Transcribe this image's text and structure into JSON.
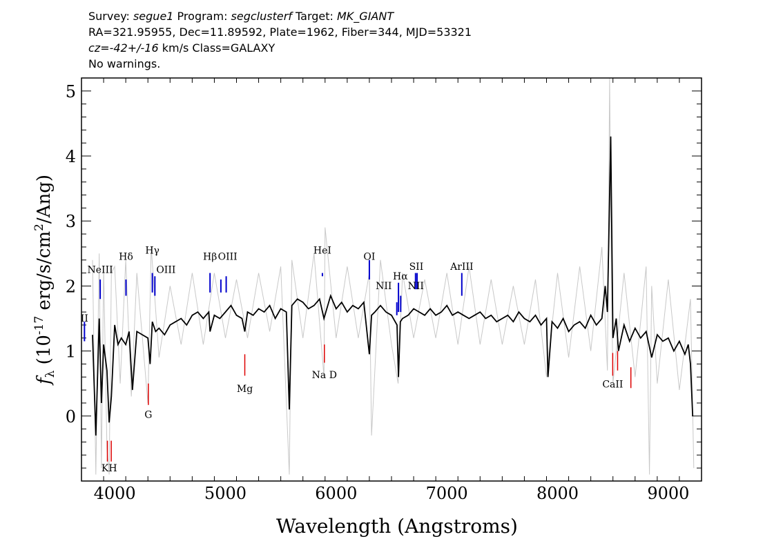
{
  "header": {
    "survey_label": "Survey: ",
    "survey": "segue1",
    "program_label": " Program: ",
    "program": "segclusterf",
    "target_label": " Target: ",
    "target": "MK_GIANT",
    "line2": "RA=321.95955, Dec=11.89592, Plate=1962, Fiber=344, MJD=53321",
    "cz": "cz=-42+/-16",
    "cz_units": " km/s Class=GALAXY",
    "warnings": "No warnings."
  },
  "chart_data": {
    "type": "line",
    "xlabel": "Wavelength (Angstroms)",
    "ylabel": "f_λ (10^-17 erg/s/cm^2/Ang)",
    "xlim": [
      3700,
      9300
    ],
    "ylim": [
      -1.0,
      5.2
    ],
    "xticks": [
      4000,
      5000,
      6000,
      7000,
      8000,
      9000
    ],
    "yticks": [
      0,
      1,
      2,
      3,
      4,
      5
    ],
    "colors": {
      "flux": "#000000",
      "error": "#c8c8c8",
      "emission": "#0000cc",
      "absorption": "#dd0000"
    },
    "series": [
      {
        "role": "flux",
        "x": [
          3800,
          3830,
          3860,
          3880,
          3900,
          3930,
          3950,
          3970,
          4000,
          4030,
          4060,
          4100,
          4130,
          4160,
          4200,
          4250,
          4300,
          4320,
          4340,
          4370,
          4400,
          4450,
          4500,
          4550,
          4600,
          4650,
          4700,
          4750,
          4800,
          4850,
          4861,
          4900,
          4950,
          5000,
          5050,
          5100,
          5150,
          5175,
          5200,
          5250,
          5300,
          5350,
          5400,
          5450,
          5500,
          5550,
          5577,
          5600,
          5650,
          5700,
          5750,
          5800,
          5850,
          5890,
          5950,
          6000,
          6050,
          6100,
          6150,
          6200,
          6250,
          6300,
          6320,
          6350,
          6400,
          6450,
          6500,
          6550,
          6563,
          6580,
          6600,
          6650,
          6700,
          6750,
          6800,
          6850,
          6900,
          6950,
          7000,
          7050,
          7100,
          7150,
          7200,
          7250,
          7300,
          7350,
          7400,
          7450,
          7500,
          7550,
          7600,
          7650,
          7700,
          7750,
          7800,
          7850,
          7900,
          7913,
          7950,
          8000,
          8050,
          8100,
          8150,
          8200,
          8250,
          8300,
          8350,
          8400,
          8430,
          8450,
          8480,
          8500,
          8530,
          8550,
          8600,
          8650,
          8700,
          8750,
          8800,
          8850,
          8900,
          8950,
          9000,
          9050,
          9100,
          9150,
          9180,
          9200,
          9220
        ],
        "y": [
          1.25,
          -0.3,
          1.5,
          0.2,
          1.1,
          0.7,
          -0.1,
          0.3,
          1.4,
          1.1,
          1.2,
          1.1,
          1.3,
          0.4,
          1.3,
          1.25,
          1.2,
          0.8,
          1.45,
          1.3,
          1.35,
          1.25,
          1.4,
          1.45,
          1.5,
          1.4,
          1.55,
          1.6,
          1.5,
          1.6,
          1.3,
          1.55,
          1.5,
          1.6,
          1.7,
          1.55,
          1.5,
          1.3,
          1.6,
          1.55,
          1.65,
          1.6,
          1.7,
          1.5,
          1.65,
          1.6,
          0.1,
          1.7,
          1.8,
          1.75,
          1.65,
          1.7,
          1.8,
          1.5,
          1.85,
          1.65,
          1.75,
          1.6,
          1.7,
          1.65,
          1.75,
          0.95,
          1.55,
          1.6,
          1.7,
          1.6,
          1.55,
          1.4,
          0.6,
          1.45,
          1.5,
          1.55,
          1.65,
          1.6,
          1.55,
          1.65,
          1.55,
          1.6,
          1.7,
          1.55,
          1.6,
          1.55,
          1.5,
          1.55,
          1.6,
          1.5,
          1.55,
          1.45,
          1.5,
          1.55,
          1.45,
          1.6,
          1.5,
          1.45,
          1.55,
          1.4,
          1.5,
          0.6,
          1.45,
          1.35,
          1.5,
          1.3,
          1.4,
          1.45,
          1.35,
          1.55,
          1.4,
          1.5,
          2.0,
          1.6,
          4.3,
          1.2,
          1.5,
          1.0,
          1.4,
          1.15,
          1.35,
          1.2,
          1.3,
          0.9,
          1.25,
          1.15,
          1.2,
          1.0,
          1.15,
          0.95,
          1.1,
          0.8,
          0.0
        ]
      },
      {
        "role": "error",
        "x": [
          3800,
          3830,
          3860,
          3880,
          3900,
          3930,
          3950,
          3970,
          4000,
          4050,
          4100,
          4150,
          4200,
          4300,
          4330,
          4400,
          4500,
          4600,
          4700,
          4800,
          4900,
          5000,
          5100,
          5200,
          5300,
          5400,
          5500,
          5577,
          5600,
          5700,
          5800,
          5890,
          5900,
          6000,
          6100,
          6200,
          6300,
          6320,
          6400,
          6500,
          6560,
          6600,
          6700,
          6800,
          6900,
          7000,
          7100,
          7200,
          7300,
          7400,
          7500,
          7600,
          7700,
          7800,
          7900,
          8000,
          8100,
          8200,
          8300,
          8400,
          8450,
          8470,
          8480,
          8500,
          8600,
          8700,
          8800,
          8830,
          8850,
          8900,
          9000,
          9100,
          9200,
          9230
        ],
        "y": [
          2.4,
          -0.9,
          2.5,
          -0.8,
          2.3,
          -0.5,
          -0.9,
          2.2,
          2.3,
          0.5,
          2.4,
          0.3,
          2.2,
          0.2,
          2.6,
          0.9,
          2.0,
          1.1,
          2.2,
          1.1,
          2.2,
          1.2,
          2.1,
          1.2,
          2.2,
          1.3,
          2.3,
          -0.9,
          2.4,
          1.2,
          2.5,
          0.6,
          2.9,
          1.2,
          2.3,
          1.2,
          2.2,
          -0.3,
          2.4,
          1.1,
          0.5,
          2.2,
          1.2,
          2.1,
          1.2,
          2.2,
          1.1,
          2.3,
          1.1,
          2.1,
          1.1,
          2.0,
          1.1,
          2.1,
          0.6,
          2.2,
          0.9,
          2.3,
          1.0,
          2.6,
          0.7,
          5.2,
          3.0,
          0.5,
          2.2,
          0.6,
          2.3,
          -0.9,
          2.0,
          0.5,
          2.1,
          0.4,
          1.8,
          -0.8
        ]
      }
    ],
    "emission_lines": [
      {
        "name": "OII",
        "x": 3727
      },
      {
        "name": "NeIII",
        "x": 3869
      },
      {
        "name": "Hδ",
        "x": 4102
      },
      {
        "name": "Hγ",
        "x": 4340
      },
      {
        "name": "OIII",
        "x": 4363
      },
      {
        "name": "Hβ",
        "x": 4861
      },
      {
        "name": "OIII",
        "x": 4959
      },
      {
        "name": "OIII",
        "x": 5007
      },
      {
        "name": "HeI",
        "x": 5876
      },
      {
        "name": "OI",
        "x": 6300
      },
      {
        "name": "NII",
        "x": 6548
      },
      {
        "name": "Hα",
        "x": 6563
      },
      {
        "name": "NII",
        "x": 6583
      },
      {
        "name": "SII",
        "x": 6717
      },
      {
        "name": "SII",
        "x": 6731
      },
      {
        "name": "ArIII",
        "x": 7135
      }
    ],
    "emission_labels": [
      {
        "text": "II",
        "x": 3727,
        "y": 1.45
      },
      {
        "text": "NeIII",
        "x": 3869,
        "y": 2.2
      },
      {
        "text": "Hδ",
        "x": 4102,
        "y": 2.4
      },
      {
        "text": "Hγ",
        "x": 4340,
        "y": 2.5
      },
      {
        "text": "OIII",
        "x": 4463,
        "y": 2.2
      },
      {
        "text": "Hβ",
        "x": 4861,
        "y": 2.4
      },
      {
        "text": "OIII",
        "x": 5020,
        "y": 2.4
      },
      {
        "text": "HeI",
        "x": 5876,
        "y": 2.5
      },
      {
        "text": "OI",
        "x": 6300,
        "y": 2.4
      },
      {
        "text": "NII",
        "x": 6430,
        "y": 1.95
      },
      {
        "text": "Hα",
        "x": 6580,
        "y": 2.1
      },
      {
        "text": "SII",
        "x": 6724,
        "y": 2.25
      },
      {
        "text": "NII",
        "x": 6720,
        "y": 1.95
      },
      {
        "text": "ArIII",
        "x": 7135,
        "y": 2.25
      }
    ],
    "absorption_lines": [
      {
        "name": "K",
        "x": 3934
      },
      {
        "name": "H",
        "x": 3969
      },
      {
        "name": "G",
        "x": 4304
      },
      {
        "name": "Mg",
        "x": 5175
      },
      {
        "name": "Na",
        "x": 5894
      },
      {
        "name": "CaII",
        "x": 8498
      },
      {
        "name": "CaII",
        "x": 8542
      },
      {
        "name": "CaII",
        "x": 8662
      }
    ],
    "absorption_labels": [
      {
        "text": "KH",
        "x": 3951,
        "y": -0.85
      },
      {
        "text": "G",
        "x": 4304,
        "y": -0.03
      },
      {
        "text": "Mg",
        "x": 5175,
        "y": 0.37
      },
      {
        "text": "Na D",
        "x": 5894,
        "y": 0.58
      },
      {
        "text": "CaII",
        "x": 8498,
        "y": 0.44
      }
    ]
  }
}
